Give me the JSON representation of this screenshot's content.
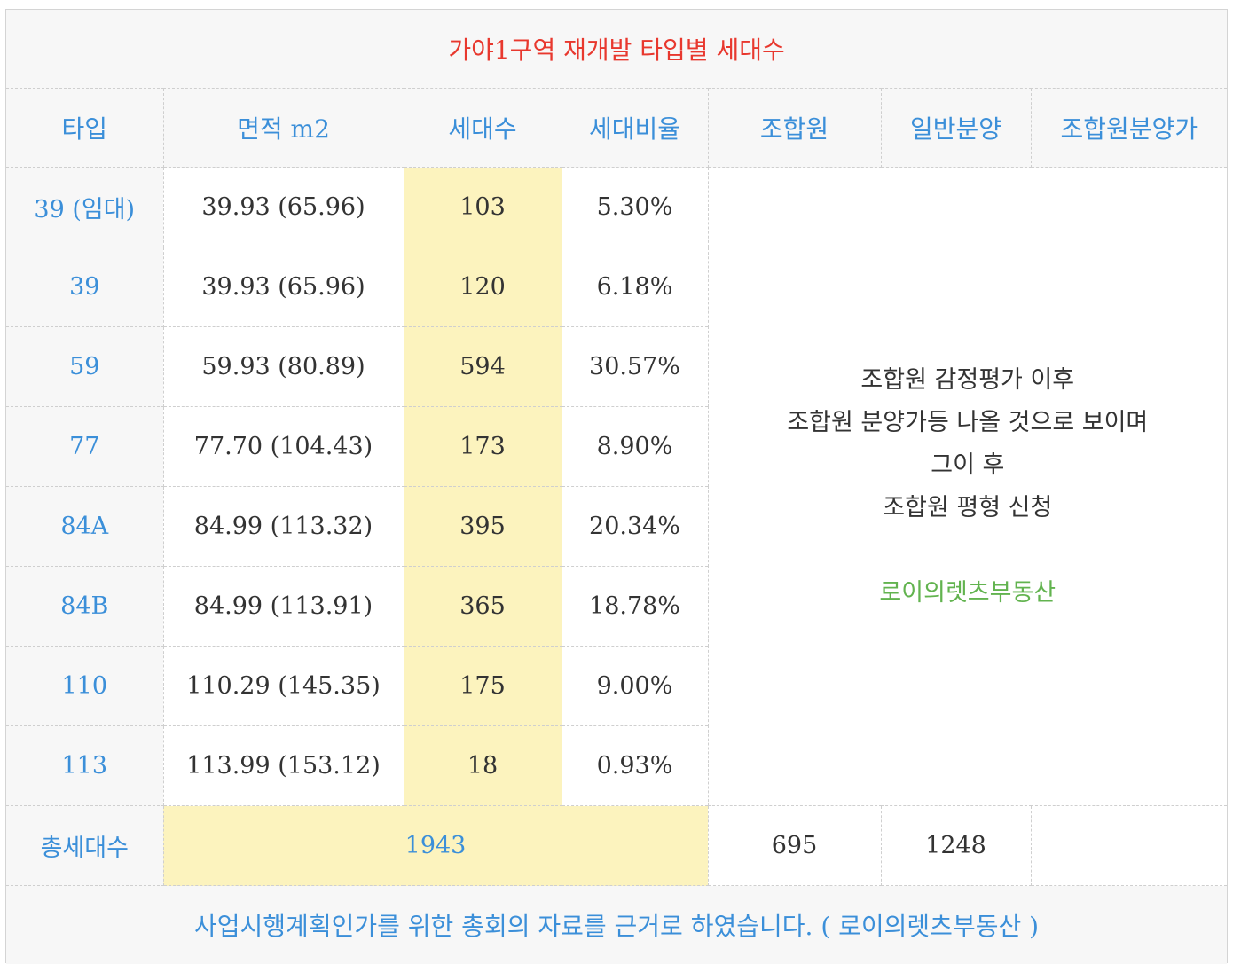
{
  "title": "가야1구역 재개발 타입별 세대수",
  "headers": [
    "타입",
    "면적 m2",
    "세대수",
    "세대비율",
    "조합원",
    "일반분양",
    "조합원분양가"
  ],
  "rows": [
    {
      "type": "39 (임대)",
      "area": "39.93 (65.96)",
      "units": "103",
      "ratio": "5.30%"
    },
    {
      "type": "39",
      "area": "39.93 (65.96)",
      "units": "120",
      "ratio": "6.18%"
    },
    {
      "type": "59",
      "area": "59.93 (80.89)",
      "units": "594",
      "ratio": "30.57%"
    },
    {
      "type": "77",
      "area": "77.70 (104.43)",
      "units": "173",
      "ratio": "8.90%"
    },
    {
      "type": "84A",
      "area": "84.99 (113.32)",
      "units": "395",
      "ratio": "20.34%"
    },
    {
      "type": "84B",
      "area": "84.99 (113.91)",
      "units": "365",
      "ratio": "18.78%"
    },
    {
      "type": "110",
      "area": "110.29 (145.35)",
      "units": "175",
      "ratio": "9.00%"
    },
    {
      "type": "113",
      "area": "113.99 (153.12)",
      "units": "18",
      "ratio": "0.93%"
    }
  ],
  "note": {
    "lines": [
      "조합원 감정평가 이후",
      "조합원 분양가등 나올 것으로 보이며",
      "그이 후",
      "조합원 평형 신청"
    ],
    "brand": "로이의렛츠부동산"
  },
  "total": {
    "label": "총세대수",
    "value": "1943",
    "members": "695",
    "general": "1248",
    "member_price": ""
  },
  "footer": "사업시행계획인가를 위한 총회의 자료를 근거로 하였습니다. ( 로이의렛츠부동산 )",
  "colors": {
    "title": "#e8382e",
    "header_text": "#3b8fd9",
    "highlight": "#fcf3be",
    "brand": "#62b34f"
  }
}
